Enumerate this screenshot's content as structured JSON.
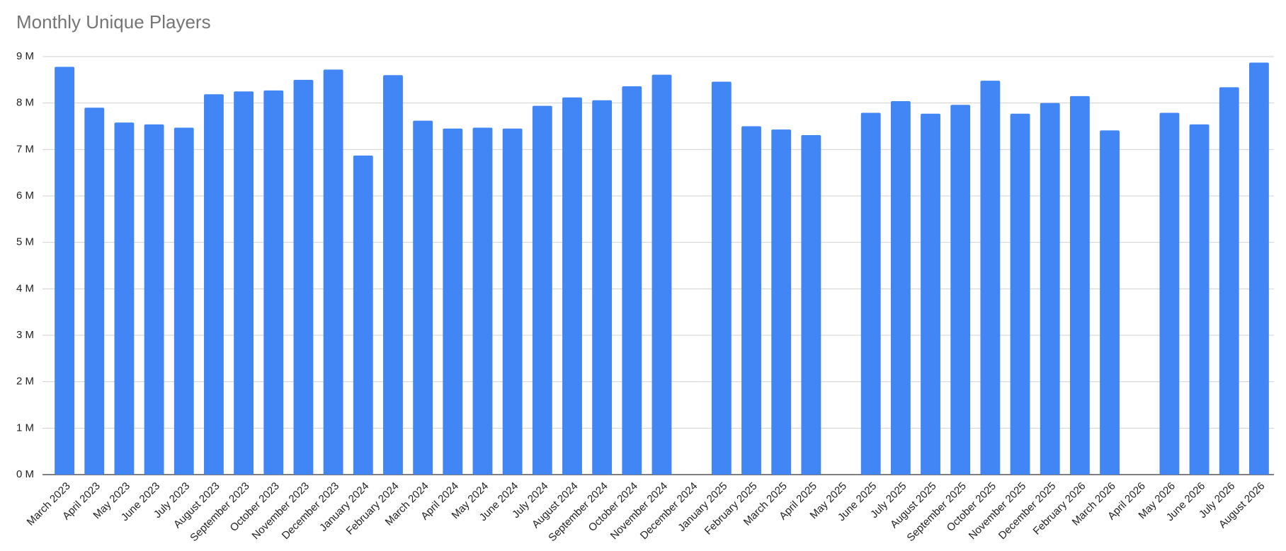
{
  "chart_data": {
    "type": "bar",
    "title": "Monthly Unique Players",
    "categories": [
      "March 2023",
      "April 2023",
      "May 2023",
      "June 2023",
      "July 2023",
      "August 2023",
      "September 2023",
      "October 2023",
      "November 2023",
      "December 2023",
      "January 2024",
      "February 2024",
      "March 2024",
      "April 2024",
      "May 2024",
      "June 2024",
      "July 2024",
      "August 2024",
      "September 2024",
      "October 2024",
      "November 2024",
      "December 2024",
      "January 2025",
      "February 2025",
      "March 2025",
      "April 2025",
      "May 2025",
      "June 2025",
      "July 2025",
      "August 2025",
      "September 2025",
      "October 2025",
      "November 2025",
      "December 2025",
      "February 2026",
      "March 2026",
      "April 2026",
      "May 2026",
      "June 2026",
      "July 2026",
      "August 2026"
    ],
    "values": [
      8.78,
      7.9,
      7.58,
      7.54,
      7.47,
      8.19,
      8.25,
      8.27,
      8.5,
      8.72,
      6.87,
      8.6,
      7.62,
      7.45,
      7.47,
      7.45,
      7.94,
      8.12,
      8.06,
      8.36,
      8.61,
      null,
      8.46,
      7.5,
      7.43,
      7.31,
      null,
      7.79,
      8.04,
      7.77,
      7.96,
      8.48,
      7.77,
      8.0,
      8.15,
      7.41,
      null,
      7.79,
      7.54,
      8.34,
      8.87
    ],
    "color": "#4285f4",
    "ylim": [
      0,
      9
    ],
    "yticks": [
      {
        "value": 0,
        "label": "0 M"
      },
      {
        "value": 1,
        "label": "1 M"
      },
      {
        "value": 2,
        "label": "2 M"
      },
      {
        "value": 3,
        "label": "3 M"
      },
      {
        "value": 4,
        "label": "4 M"
      },
      {
        "value": 5,
        "label": "5 M"
      },
      {
        "value": 6,
        "label": "6 M"
      },
      {
        "value": 7,
        "label": "7 M"
      },
      {
        "value": 8,
        "label": "8 M"
      },
      {
        "value": 9,
        "label": "9 M"
      }
    ],
    "grid": true
  }
}
